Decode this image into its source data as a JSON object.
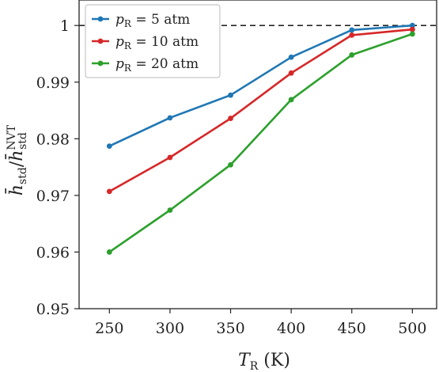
{
  "chart_data": {
    "type": "line",
    "xlabel": "T_R (K)",
    "ylabel": "h̄_std / h̄_std^NVT",
    "x": [
      250,
      300,
      350,
      400,
      450,
      500
    ],
    "xlim": [
      225,
      520
    ],
    "ylim": [
      0.95,
      1.0045
    ],
    "xticks": [
      "250",
      "300",
      "350",
      "400",
      "450",
      "500"
    ],
    "yticks": [
      "0.95",
      "0.96",
      "0.97",
      "0.98",
      "0.99",
      "1"
    ],
    "reference_line": {
      "y": 1.0,
      "style": "dashed",
      "color": "#000000"
    },
    "legend_placement": "top-left",
    "series": [
      {
        "name": "p_R = 5 atm",
        "color": "#1f77b4",
        "values": [
          0.9787,
          0.9837,
          0.9877,
          0.9944,
          0.9992,
          1.0
        ]
      },
      {
        "name": "p_R = 10 atm",
        "color": "#d62728",
        "values": [
          0.9707,
          0.9767,
          0.9836,
          0.9916,
          0.9983,
          0.9993
        ]
      },
      {
        "name": "p_R = 20 atm",
        "color": "#2ca02c",
        "values": [
          0.96,
          0.9674,
          0.9754,
          0.9869,
          0.9948,
          0.9985
        ]
      }
    ]
  }
}
